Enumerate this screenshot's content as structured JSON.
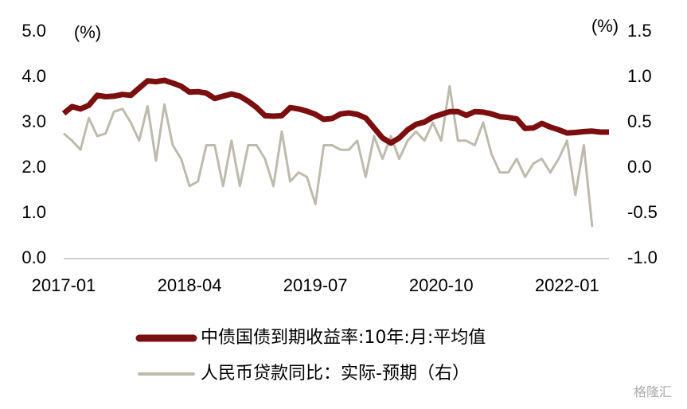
{
  "chart_data": {
    "type": "line",
    "left_unit": "(%)",
    "right_unit": "(%)",
    "categories": [
      "2017-01",
      null,
      null,
      null,
      null,
      null,
      null,
      null,
      null,
      null,
      null,
      null,
      null,
      null,
      null,
      "2018-04",
      null,
      null,
      null,
      null,
      null,
      null,
      null,
      null,
      null,
      null,
      null,
      null,
      null,
      null,
      "2019-07",
      null,
      null,
      null,
      null,
      null,
      null,
      null,
      null,
      null,
      null,
      null,
      null,
      null,
      null,
      "2020-10",
      null,
      null,
      null,
      null,
      null,
      null,
      null,
      null,
      null,
      null,
      null,
      null,
      null,
      null,
      "2022-01",
      null,
      null,
      null,
      null,
      null
    ],
    "series": [
      {
        "name": "中债国债到期收益率:10年:月:平均值",
        "color": "#7b0e0e",
        "axis": "y",
        "values": [
          3.2,
          3.35,
          3.3,
          3.38,
          3.6,
          3.57,
          3.58,
          3.62,
          3.6,
          3.76,
          3.92,
          3.9,
          3.93,
          3.87,
          3.8,
          3.67,
          3.68,
          3.65,
          3.53,
          3.58,
          3.63,
          3.58,
          3.47,
          3.33,
          3.15,
          3.14,
          3.15,
          3.33,
          3.3,
          3.25,
          3.18,
          3.07,
          3.09,
          3.19,
          3.21,
          3.18,
          3.1,
          2.88,
          2.66,
          2.55,
          2.66,
          2.84,
          2.96,
          3.01,
          3.12,
          3.18,
          3.24,
          3.24,
          3.16,
          3.24,
          3.23,
          3.19,
          3.13,
          3.11,
          3.08,
          2.87,
          2.88,
          2.98,
          2.9,
          2.84,
          2.77,
          2.78,
          2.8,
          2.81,
          2.79,
          2.79
        ]
      },
      {
        "name": "人民币贷款同比：实际-预期（右）",
        "color": "#bdbbae",
        "axis": "y2",
        "values": [
          0.38,
          0.3,
          0.2,
          0.55,
          0.35,
          0.38,
          0.62,
          0.65,
          0.5,
          0.3,
          0.68,
          0.08,
          0.7,
          0.25,
          0.1,
          -0.2,
          -0.15,
          0.25,
          0.25,
          -0.2,
          0.3,
          -0.2,
          0.25,
          0.25,
          0.1,
          -0.2,
          0.4,
          -0.15,
          -0.05,
          -0.1,
          -0.4,
          0.25,
          0.25,
          0.2,
          0.2,
          0.3,
          -0.1,
          0.35,
          0.1,
          0.35,
          0.1,
          0.3,
          0.4,
          0.3,
          0.5,
          0.3,
          0.9,
          0.3,
          0.3,
          0.25,
          0.5,
          0.15,
          -0.05,
          -0.05,
          0.1,
          -0.1,
          0.05,
          0.1,
          -0.05,
          0.1,
          0.3,
          -0.3,
          0.25,
          -0.65,
          null,
          null
        ]
      }
    ],
    "ylim": [
      0,
      5
    ],
    "yticks": [
      {
        "value": 0,
        "label": "0.0"
      },
      {
        "value": 1,
        "label": "1.0"
      },
      {
        "value": 2,
        "label": "2.0"
      },
      {
        "value": 3,
        "label": "3.0"
      },
      {
        "value": 4,
        "label": "4.0"
      },
      {
        "value": 5,
        "label": "5.0"
      }
    ],
    "y2lim": [
      -1,
      1.5
    ],
    "y2ticks": [
      {
        "value": -1,
        "label": "-1.0"
      },
      {
        "value": -0.5,
        "label": "-0.5"
      },
      {
        "value": 0,
        "label": "0.0"
      },
      {
        "value": 0.5,
        "label": "0.5"
      },
      {
        "value": 1,
        "label": "1.0"
      },
      {
        "value": 1.5,
        "label": "1.5"
      }
    ],
    "watermark": "格隆汇"
  }
}
